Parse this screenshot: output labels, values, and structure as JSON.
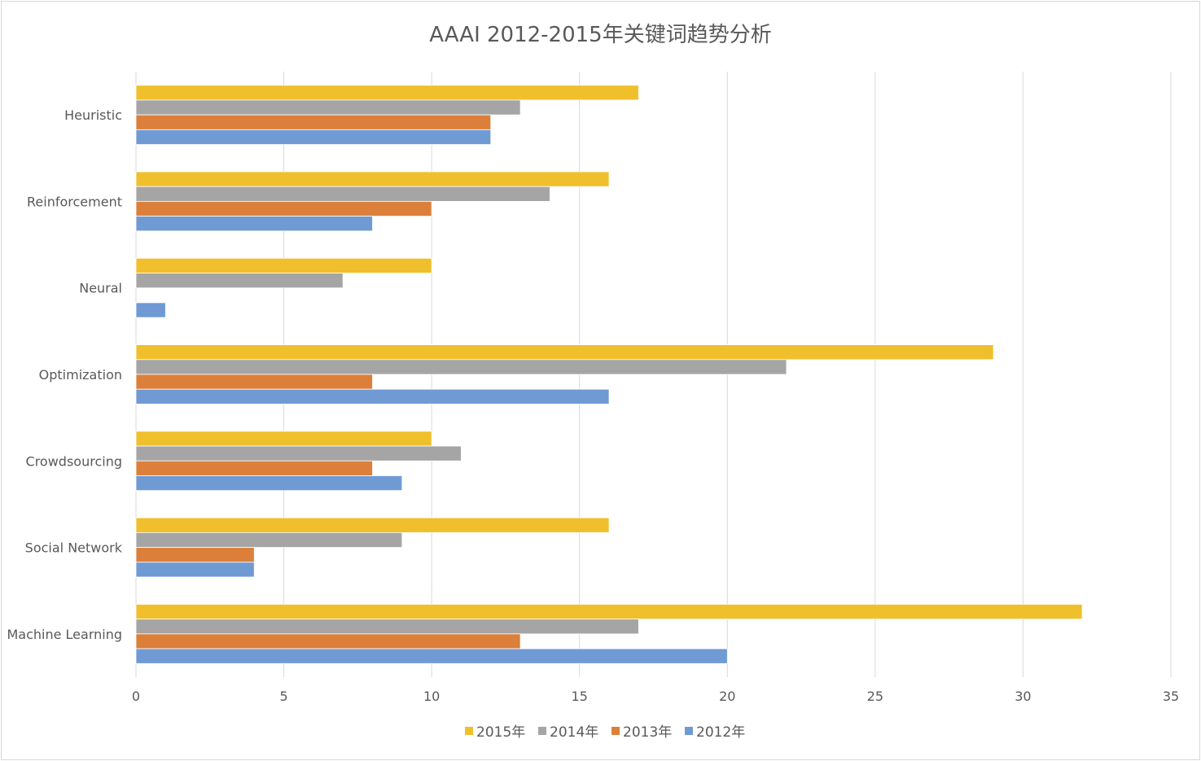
{
  "chart_data": {
    "type": "bar",
    "orientation": "horizontal",
    "title": "AAAI 2012-2015年关键词趋势分析",
    "categories": [
      "Heuristic",
      "Reinforcement",
      "Neural",
      "Optimization",
      "Crowdsourcing",
      "Social Network",
      "Machine Learning"
    ],
    "series": [
      {
        "name": "2015年",
        "color": "#f0bf2c",
        "values": [
          17,
          16,
          10,
          29,
          10,
          16,
          32
        ]
      },
      {
        "name": "2014年",
        "color": "#a5a5a5",
        "values": [
          13,
          14,
          7,
          22,
          11,
          9,
          17
        ]
      },
      {
        "name": "2013年",
        "color": "#dc7f3a",
        "values": [
          12,
          10,
          0,
          8,
          8,
          4,
          13
        ]
      },
      {
        "name": "2012年",
        "color": "#709ad4",
        "values": [
          12,
          8,
          1,
          16,
          9,
          4,
          20
        ]
      }
    ],
    "xlim": [
      0,
      35
    ],
    "xticks": [
      0,
      5,
      10,
      15,
      20,
      25,
      30,
      35
    ],
    "grid": "vertical",
    "legend": "bottom-center"
  }
}
